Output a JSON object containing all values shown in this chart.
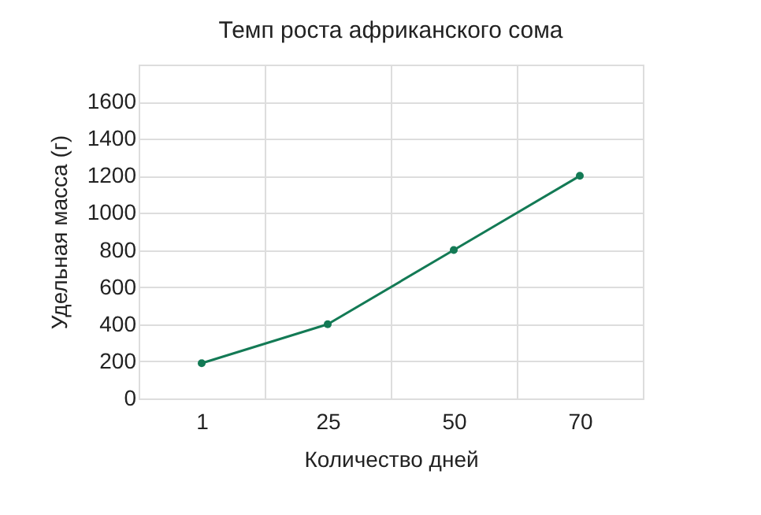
{
  "chart_data": {
    "type": "line",
    "title": "Темп роста африканского сома",
    "xlabel": "Количество дней",
    "ylabel": "Удельная масса (г)",
    "categories": [
      "1",
      "25",
      "50",
      "70"
    ],
    "series": [
      {
        "color": "#137a55",
        "values": [
          190,
          400,
          800,
          1200
        ]
      }
    ],
    "ylim": [
      0,
      1800
    ],
    "yticks": [
      0,
      200,
      400,
      600,
      800,
      1000,
      1200,
      1400,
      1600
    ],
    "grid": true,
    "marker": "circle",
    "line_style": "solid"
  }
}
